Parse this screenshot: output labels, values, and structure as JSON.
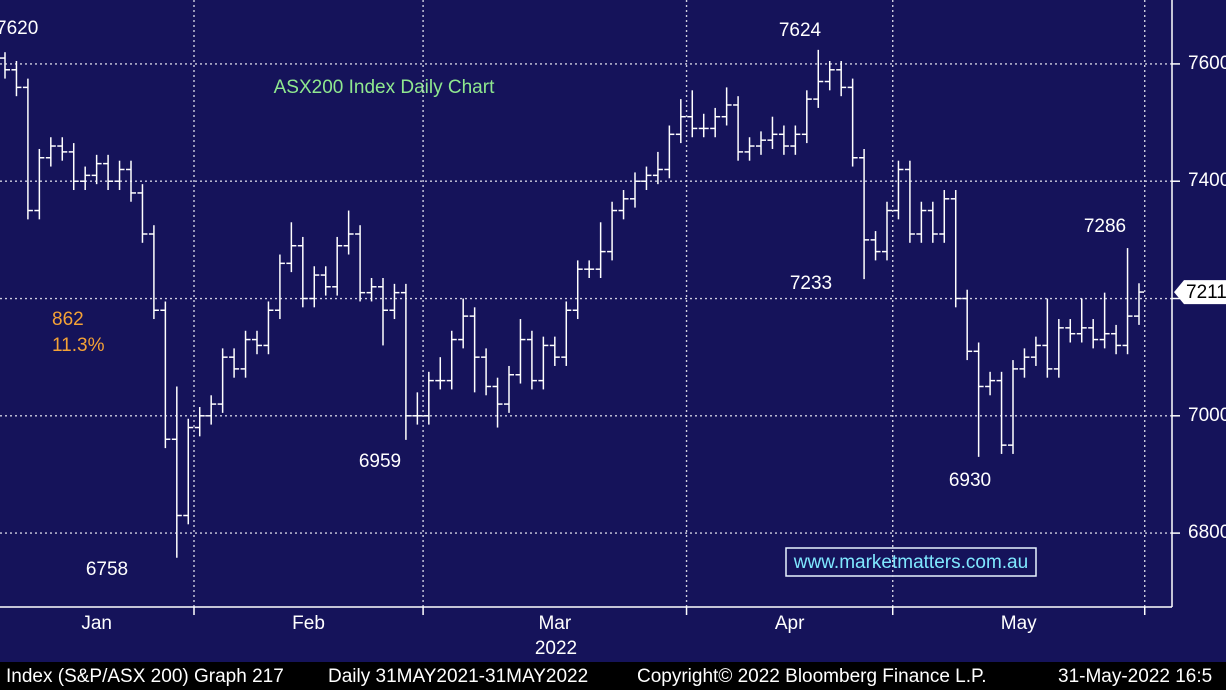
{
  "chart_data": {
    "type": "ohlc",
    "title": "ASX200 Index Daily Chart",
    "months": [
      {
        "label": "Jan",
        "days": 17
      },
      {
        "label": "Feb",
        "days": 20
      },
      {
        "label": "Mar",
        "days": 23
      },
      {
        "label": "Apr",
        "days": 18
      },
      {
        "label": "May",
        "days": 22
      }
    ],
    "year": "2022",
    "ylim": [
      6674,
      7709
    ],
    "yticks": [
      6800,
      7000,
      7200,
      7400,
      7600
    ],
    "grid": true,
    "color": "#ffffff",
    "series": {
      "open": [
        7610,
        7590,
        7560,
        7350,
        7440,
        7460,
        7450,
        7400,
        7410,
        7430,
        7400,
        7420,
        7380,
        7310,
        7180,
        6960,
        6830,
        6980,
        7000,
        7020,
        7100,
        7080,
        7130,
        7120,
        7180,
        7260,
        7290,
        7200,
        7240,
        7220,
        7290,
        7310,
        7210,
        7220,
        7180,
        7210,
        7000,
        7000,
        7060,
        7060,
        7130,
        7170,
        7100,
        7050,
        7020,
        7070,
        7130,
        7060,
        7120,
        7100,
        7180,
        7250,
        7250,
        7280,
        7350,
        7370,
        7400,
        7410,
        7420,
        7480,
        7510,
        7490,
        7490,
        7510,
        7530,
        7450,
        7460,
        7470,
        7480,
        7460,
        7480,
        7540,
        7570,
        7590,
        7560,
        7440,
        7300,
        7280,
        7350,
        7420,
        7310,
        7350,
        7310,
        7370,
        7200,
        7110,
        7050,
        7060,
        6950,
        7080,
        7100,
        7120,
        7080,
        7150,
        7140,
        7150,
        7130,
        7140,
        7120,
        7170
      ],
      "high": [
        7620,
        7605,
        7575,
        7455,
        7475,
        7475,
        7465,
        7425,
        7445,
        7445,
        7435,
        7435,
        7395,
        7325,
        7195,
        7050,
        6995,
        7015,
        7035,
        7115,
        7115,
        7145,
        7145,
        7195,
        7275,
        7330,
        7305,
        7255,
        7255,
        7305,
        7350,
        7325,
        7235,
        7235,
        7225,
        7225,
        7040,
        7075,
        7100,
        7145,
        7200,
        7185,
        7115,
        7065,
        7085,
        7165,
        7145,
        7135,
        7135,
        7195,
        7265,
        7265,
        7330,
        7365,
        7385,
        7415,
        7425,
        7450,
        7495,
        7540,
        7555,
        7515,
        7525,
        7560,
        7545,
        7475,
        7485,
        7510,
        7495,
        7495,
        7555,
        7624,
        7605,
        7605,
        7575,
        7455,
        7315,
        7365,
        7435,
        7435,
        7365,
        7365,
        7385,
        7385,
        7215,
        7125,
        7075,
        7075,
        7095,
        7115,
        7135,
        7200,
        7165,
        7165,
        7200,
        7165,
        7210,
        7155,
        7286,
        7226
      ],
      "low": [
        7575,
        7545,
        7335,
        7335,
        7425,
        7435,
        7385,
        7385,
        7395,
        7385,
        7385,
        7365,
        7295,
        7165,
        6945,
        6758,
        6815,
        6965,
        6985,
        7005,
        7065,
        7065,
        7105,
        7105,
        7165,
        7245,
        7185,
        7185,
        7205,
        7205,
        7275,
        7195,
        7195,
        7120,
        7165,
        6959,
        6985,
        6985,
        7045,
        7045,
        7115,
        7040,
        7035,
        6980,
        7005,
        7055,
        7045,
        7045,
        7085,
        7085,
        7165,
        7235,
        7235,
        7265,
        7335,
        7355,
        7385,
        7395,
        7405,
        7465,
        7475,
        7475,
        7475,
        7495,
        7435,
        7435,
        7445,
        7455,
        7445,
        7445,
        7465,
        7525,
        7555,
        7545,
        7425,
        7233,
        7265,
        7265,
        7335,
        7295,
        7295,
        7295,
        7295,
        7185,
        7095,
        6930,
        7035,
        6935,
        6935,
        7065,
        7085,
        7065,
        7065,
        7125,
        7125,
        7115,
        7115,
        7105,
        7105,
        7155
      ],
      "close": [
        7590,
        7560,
        7350,
        7440,
        7460,
        7450,
        7400,
        7410,
        7430,
        7400,
        7420,
        7380,
        7310,
        7180,
        6960,
        6830,
        6980,
        7000,
        7020,
        7100,
        7080,
        7130,
        7120,
        7180,
        7260,
        7290,
        7200,
        7240,
        7220,
        7290,
        7310,
        7210,
        7220,
        7180,
        7210,
        7000,
        7000,
        7060,
        7060,
        7130,
        7170,
        7100,
        7050,
        7020,
        7070,
        7130,
        7060,
        7120,
        7100,
        7180,
        7250,
        7250,
        7280,
        7350,
        7370,
        7400,
        7410,
        7420,
        7480,
        7510,
        7490,
        7490,
        7510,
        7530,
        7450,
        7460,
        7470,
        7480,
        7460,
        7480,
        7540,
        7570,
        7590,
        7560,
        7440,
        7300,
        7280,
        7350,
        7420,
        7310,
        7350,
        7310,
        7370,
        7200,
        7110,
        7050,
        7060,
        6950,
        7080,
        7100,
        7120,
        7080,
        7150,
        7140,
        7150,
        7130,
        7140,
        7120,
        7170,
        7211
      ]
    },
    "annotations": {
      "range": "862",
      "pct": "11.3%",
      "website": "www.marketmatters.com.au"
    },
    "footer": [
      "Index (S&P/ASX 200) Graph 217",
      "Daily 31MAY2021-31MAY2022",
      "Copyright© 2022 Bloomberg Finance L.P.",
      "31-May-2022 16:5"
    ]
  }
}
